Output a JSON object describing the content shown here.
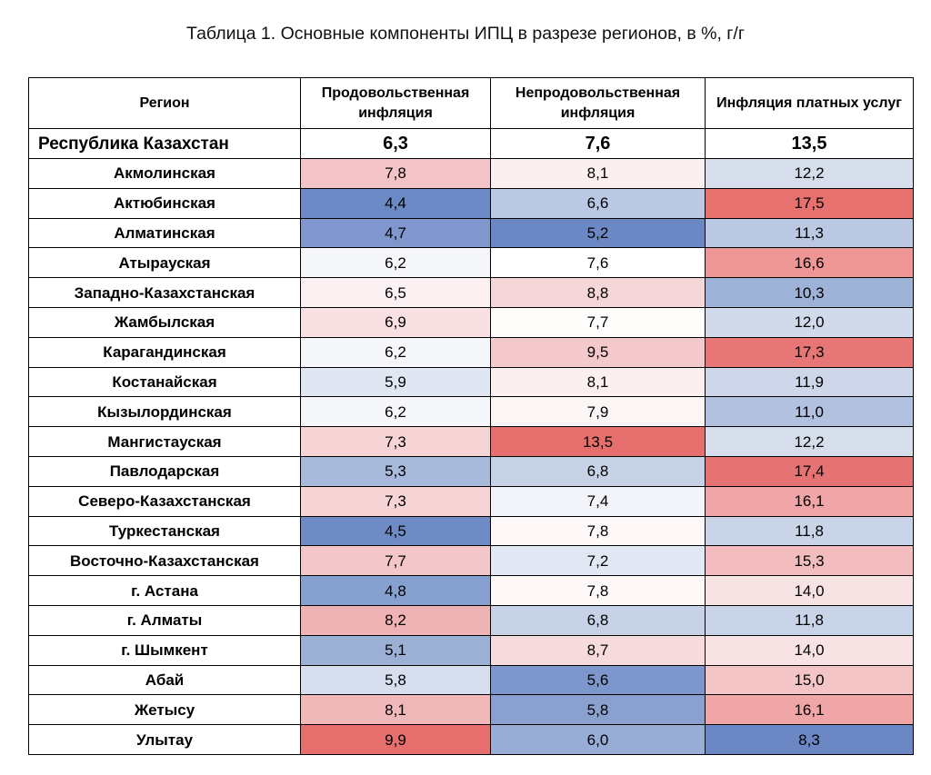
{
  "title": "Таблица 1. Основные компоненты ИПЦ в разрезе регионов, в %, г/г",
  "header": {
    "region": "Регион",
    "food": "Продовольственная инфляция",
    "nonfood": "Непродовольственная инфляция",
    "services": "Инфляция платных услуг"
  },
  "total": {
    "region": "Республика Казахстан",
    "food": "6,3",
    "nonfood": "7,6",
    "services": "13,5"
  },
  "rows": [
    {
      "region": "Акмолинская",
      "food": "7,8",
      "nonfood": "8,1",
      "services": "12,2",
      "food_color": "#f2c4c7",
      "nonfood_color": "#fcefef",
      "services_color": "#d6deec"
    },
    {
      "region": "Актюбинская",
      "food": "4,4",
      "nonfood": "6,6",
      "services": "17,5",
      "food_color": "#6b89c4",
      "nonfood_color": "#bac8e3",
      "services_color": "#e6716f"
    },
    {
      "region": "Алматинская",
      "food": "4,7",
      "nonfood": "5,2",
      "services": "11,3",
      "food_color": "#7f97cc",
      "nonfood_color": "#6b88c4",
      "services_color": "#bac8e3"
    },
    {
      "region": "Атырауская",
      "food": "6,2",
      "nonfood": "7,6",
      "services": "16,6",
      "food_color": "#f6f7fb",
      "nonfood_color": "#ffffff",
      "services_color": "#ee9696"
    },
    {
      "region": "Западно-Казахстанская",
      "food": "6,5",
      "nonfood": "8,8",
      "services": "10,3",
      "food_color": "#fcf1f2",
      "nonfood_color": "#f6d7d9",
      "services_color": "#9eb2d8"
    },
    {
      "region": "Жамбылская",
      "food": "6,9",
      "nonfood": "7,7",
      "services": "12,0",
      "food_color": "#f9e0e2",
      "nonfood_color": "#fffcfc",
      "services_color": "#d1daea"
    },
    {
      "region": "Карагандинская",
      "food": "6,2",
      "nonfood": "9,5",
      "services": "17,3",
      "food_color": "#f6f7fb",
      "nonfood_color": "#f4c9cc",
      "services_color": "#e77676"
    },
    {
      "region": "Костанайская",
      "food": "5,9",
      "nonfood": "8,1",
      "services": "11,9",
      "food_color": "#e1e7f2",
      "nonfood_color": "#fcefef",
      "services_color": "#cdd7e9"
    },
    {
      "region": "Кызылординская",
      "food": "6,2",
      "nonfood": "7,9",
      "services": "11,0",
      "food_color": "#f6f7fb",
      "nonfood_color": "#fdf6f6",
      "services_color": "#b2c1e0"
    },
    {
      "region": "Мангистауская",
      "food": "7,3",
      "nonfood": "13,5",
      "services": "12,2",
      "food_color": "#f6d4d6",
      "nonfood_color": "#e66f6e",
      "services_color": "#d6deec"
    },
    {
      "region": "Павлодарская",
      "food": "5,3",
      "nonfood": "6,8",
      "services": "17,4",
      "food_color": "#a8badb",
      "nonfood_color": "#c8d2e7",
      "services_color": "#e67373"
    },
    {
      "region": "Северо-Казахстанская",
      "food": "7,3",
      "nonfood": "7,4",
      "services": "16,1",
      "food_color": "#f6d4d6",
      "nonfood_color": "#f2f4f9",
      "services_color": "#f0a5a6"
    },
    {
      "region": "Туркестанская",
      "food": "4,5",
      "nonfood": "7,8",
      "services": "11,8",
      "food_color": "#6e8bc5",
      "nonfood_color": "#fef8f8",
      "services_color": "#cad4e8"
    },
    {
      "region": "Восточно-Казахстанская",
      "food": "7,7",
      "nonfood": "7,2",
      "services": "15,3",
      "food_color": "#f3c6c9",
      "nonfood_color": "#e2e8f3",
      "services_color": "#f3bdbf"
    },
    {
      "region": "г. Астана",
      "food": "4,8",
      "nonfood": "7,8",
      "services": "14,0",
      "food_color": "#86a0cf",
      "nonfood_color": "#fef8f8",
      "services_color": "#f8e3e4"
    },
    {
      "region": "г. Алматы",
      "food": "8,2",
      "nonfood": "6,8",
      "services": "11,8",
      "food_color": "#f0b3b5",
      "nonfood_color": "#c8d2e7",
      "services_color": "#cad4e8"
    },
    {
      "region": "г. Шымкент",
      "food": "5,1",
      "nonfood": "8,7",
      "services": "14,0",
      "food_color": "#9cb0d6",
      "nonfood_color": "#f7dadb",
      "services_color": "#f8e3e4"
    },
    {
      "region": "Абай",
      "food": "5,8",
      "nonfood": "5,6",
      "services": "15,0",
      "food_color": "#d7dfee",
      "nonfood_color": "#7d96cb",
      "services_color": "#f4c5c7"
    },
    {
      "region": "Жетысу",
      "food": "8,1",
      "nonfood": "5,8",
      "services": "16,1",
      "food_color": "#f1b8ba",
      "nonfood_color": "#8aa1d0",
      "services_color": "#f0a5a6"
    },
    {
      "region": "Улытау",
      "food": "9,9",
      "nonfood": "6,0",
      "services": "8,3",
      "food_color": "#e66e6d",
      "nonfood_color": "#98add6",
      "services_color": "#6b88c4"
    }
  ]
}
